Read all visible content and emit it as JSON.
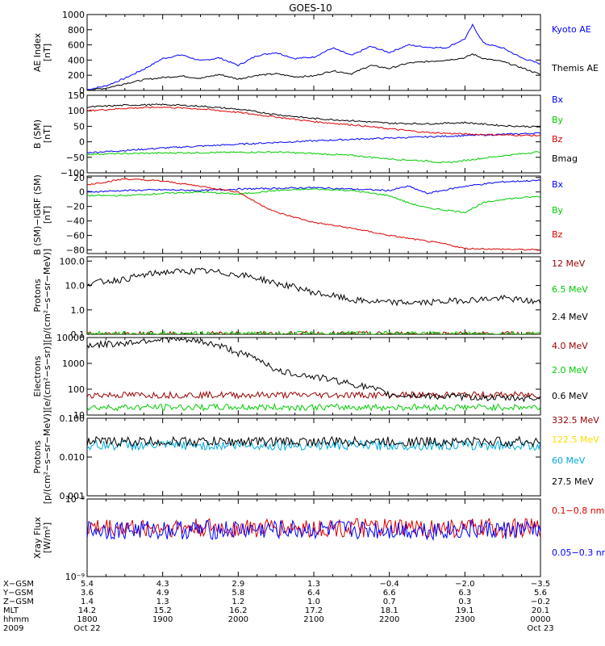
{
  "chart_data": {
    "type": "line",
    "title": "GOES-10",
    "x_range_hours": [
      18,
      24
    ],
    "panels": [
      {
        "id": "ae",
        "ylabel": [
          "AE Index",
          "[nT]"
        ],
        "scale": "linear",
        "ylim": [
          0,
          1000
        ],
        "ticks": [
          "0",
          "200",
          "400",
          "600",
          "800",
          "1000"
        ],
        "tick_values": [
          0,
          200,
          400,
          600,
          800,
          1000
        ],
        "series": [
          {
            "name": "Kyoto AE",
            "color": "#0000ff",
            "x": [
              18.0,
              18.25,
              18.5,
              18.75,
              19.0,
              19.25,
              19.5,
              19.75,
              20.0,
              20.25,
              20.5,
              20.75,
              21.0,
              21.25,
              21.5,
              21.75,
              22.0,
              22.25,
              22.5,
              22.75,
              23.0,
              23.1,
              23.25,
              23.5,
              23.75,
              24.0
            ],
            "values": [
              10,
              60,
              160,
              280,
              420,
              470,
              390,
              430,
              330,
              460,
              500,
              420,
              440,
              560,
              460,
              580,
              500,
              600,
              570,
              560,
              680,
              860,
              620,
              560,
              430,
              350
            ]
          },
          {
            "name": "Themis AE",
            "color": "#000000",
            "x": [
              18.0,
              18.25,
              18.5,
              18.75,
              19.0,
              19.25,
              19.5,
              19.75,
              20.0,
              20.25,
              20.5,
              20.75,
              21.0,
              21.25,
              21.5,
              21.75,
              22.0,
              22.25,
              22.5,
              22.75,
              23.0,
              23.1,
              23.25,
              23.5,
              23.75,
              24.0
            ],
            "values": [
              5,
              30,
              90,
              140,
              170,
              190,
              160,
              210,
              150,
              200,
              220,
              180,
              190,
              260,
              220,
              330,
              290,
              360,
              380,
              400,
              430,
              480,
              420,
              380,
              300,
              210
            ]
          }
        ]
      },
      {
        "id": "bfield",
        "ylabel": [
          "B (SM)",
          "[nT]"
        ],
        "scale": "linear",
        "ylim": [
          -100,
          150
        ],
        "ticks": [
          "−100",
          "−50",
          "0",
          "50",
          "100",
          "150"
        ],
        "tick_values": [
          -100,
          -50,
          0,
          50,
          100,
          150
        ],
        "series": [
          {
            "name": "Bx",
            "color": "#0000ff",
            "x": [
              18.0,
              18.5,
              19.0,
              19.5,
              20.0,
              20.5,
              21.0,
              21.5,
              22.0,
              22.5,
              23.0,
              23.5,
              24.0
            ],
            "values": [
              -35,
              -28,
              -20,
              -14,
              -8,
              -2,
              3,
              8,
              12,
              16,
              20,
              24,
              28
            ]
          },
          {
            "name": "By",
            "color": "#00cc00",
            "x": [
              18.0,
              18.5,
              19.0,
              19.5,
              20.0,
              20.5,
              21.0,
              21.5,
              22.0,
              22.5,
              22.75,
              23.0,
              23.5,
              24.0
            ],
            "values": [
              -40,
              -38,
              -36,
              -35,
              -34,
              -33,
              -38,
              -44,
              -55,
              -62,
              -68,
              -60,
              -45,
              -32
            ]
          },
          {
            "name": "Bz",
            "color": "#dd0000",
            "x": [
              18.0,
              18.5,
              19.0,
              19.5,
              20.0,
              20.5,
              21.0,
              21.5,
              22.0,
              22.5,
              23.0,
              23.5,
              24.0
            ],
            "values": [
              100,
              108,
              112,
              106,
              95,
              80,
              65,
              55,
              42,
              30,
              25,
              22,
              20
            ]
          },
          {
            "name": "Bmag",
            "color": "#000000",
            "x": [
              18.0,
              18.5,
              19.0,
              19.5,
              20.0,
              20.5,
              21.0,
              21.5,
              22.0,
              22.5,
              23.0,
              23.5,
              24.0
            ],
            "values": [
              112,
              118,
              120,
              115,
              105,
              88,
              75,
              68,
              60,
              58,
              62,
              52,
              48
            ]
          }
        ]
      },
      {
        "id": "residual",
        "ylabel": [
          "B (SM)−IGRF (SM)",
          "[nT]"
        ],
        "scale": "linear",
        "ylim": [
          -85,
          22
        ],
        "ticks": [
          "−80",
          "−60",
          "−40",
          "−20",
          "0",
          "20"
        ],
        "tick_values": [
          -80,
          -60,
          -40,
          -20,
          0,
          20
        ],
        "series": [
          {
            "name": "Bx",
            "color": "#0000ff",
            "x": [
              18.0,
              18.5,
              19.0,
              19.5,
              20.0,
              20.5,
              21.0,
              21.5,
              22.0,
              22.25,
              22.5,
              22.75,
              23.0,
              23.5,
              24.0
            ],
            "values": [
              0,
              2,
              3,
              2,
              4,
              5,
              6,
              4,
              2,
              8,
              -2,
              3,
              8,
              14,
              16
            ]
          },
          {
            "name": "By",
            "color": "#00cc00",
            "x": [
              18.0,
              18.5,
              19.0,
              19.5,
              20.0,
              20.5,
              21.0,
              21.5,
              22.0,
              22.25,
              22.5,
              22.75,
              23.0,
              23.25,
              23.5,
              24.0
            ],
            "values": [
              -5,
              -5,
              -2,
              0,
              -3,
              2,
              4,
              2,
              -5,
              -15,
              -22,
              -25,
              -28,
              -15,
              -10,
              -6
            ]
          },
          {
            "name": "Bz",
            "color": "#dd0000",
            "x": [
              18.0,
              18.5,
              19.0,
              19.5,
              20.0,
              20.25,
              20.5,
              20.75,
              21.0,
              21.5,
              22.0,
              22.5,
              22.75,
              23.0,
              23.5,
              24.0
            ],
            "values": [
              10,
              18,
              15,
              8,
              0,
              -15,
              -28,
              -35,
              -42,
              -50,
              -60,
              -68,
              -72,
              -78,
              -79,
              -80
            ]
          }
        ]
      },
      {
        "id": "protons_low",
        "ylabel": [
          "Protons",
          "[p/(cm²−s−sr−MeV)]"
        ],
        "scale": "log",
        "ylim": [
          0.1,
          150
        ],
        "ticks": [
          "0.1",
          "1.0",
          "10.0",
          "100.0"
        ],
        "tick_values": [
          0.1,
          1,
          10,
          100
        ],
        "series": [
          {
            "name": "12 MeV",
            "color": "#990000",
            "x": [
              18.0,
              24.0
            ],
            "values": [
              0.1,
              0.1
            ],
            "noise": 0
          },
          {
            "name": "6.5 MeV",
            "color": "#00cc00",
            "x": [
              18.0,
              24.0
            ],
            "values": [
              0.1,
              0.1
            ],
            "noise": 0
          },
          {
            "name": "2.4 MeV",
            "color": "#000000",
            "x": [
              18.0,
              18.5,
              19.0,
              19.5,
              20.0,
              20.5,
              21.0,
              21.5,
              22.0,
              22.5,
              23.0,
              23.5,
              24.0
            ],
            "values": [
              12,
              18,
              35,
              40,
              28,
              12,
              5,
              2.5,
              2,
              2,
              2.5,
              3,
              2
            ]
          }
        ]
      },
      {
        "id": "electrons",
        "ylabel": [
          "Electrons",
          "[e/(cm²−s−sr)]"
        ],
        "scale": "log",
        "ylim": [
          10,
          10000
        ],
        "ticks": [
          "10",
          "100",
          "1000",
          "10000"
        ],
        "tick_values": [
          10,
          100,
          1000,
          10000
        ],
        "series": [
          {
            "name": "4.0 MeV",
            "color": "#990000",
            "x": [
              18.0,
              19.0,
              20.0,
              21.0,
              22.0,
              23.0,
              24.0
            ],
            "values": [
              60,
              60,
              60,
              60,
              60,
              60,
              60
            ]
          },
          {
            "name": "2.0 MeV",
            "color": "#00cc00",
            "x": [
              18.0,
              19.0,
              20.0,
              21.0,
              22.0,
              23.0,
              24.0
            ],
            "values": [
              20,
              20,
              20,
              20,
              20,
              20,
              20
            ]
          },
          {
            "name": "0.6 MeV",
            "color": "#000000",
            "x": [
              18.0,
              18.5,
              19.0,
              19.5,
              20.0,
              20.5,
              21.0,
              21.5,
              22.0,
              22.5,
              23.0,
              23.5,
              24.0
            ],
            "values": [
              5000,
              6000,
              9000,
              7000,
              2500,
              500,
              300,
              160,
              60,
              55,
              50,
              45,
              45
            ]
          }
        ]
      },
      {
        "id": "protons_high",
        "ylabel": [
          "Protons",
          "[p/(cm²−s−sr−MeV)]"
        ],
        "scale": "log",
        "ylim": [
          0.001,
          0.1
        ],
        "ticks": [
          "0.001",
          "0.010",
          "0.100"
        ],
        "tick_values": [
          0.001,
          0.01,
          0.1
        ],
        "series": [
          {
            "name": "332.5 MeV",
            "color": "#990000",
            "x": [],
            "values": []
          },
          {
            "name": "122.5 MeV",
            "color": "#ffdd00",
            "x": [],
            "values": []
          },
          {
            "name": "60 MeV",
            "color": "#00aadd",
            "x": [
              18.0,
              24.0
            ],
            "values": [
              0.02,
              0.02
            ]
          },
          {
            "name": "27.5 MeV",
            "color": "#000000",
            "x": [
              18.0,
              24.0
            ],
            "values": [
              0.025,
              0.025
            ]
          }
        ]
      },
      {
        "id": "xray",
        "ylabel": [
          "Xray Flux",
          "[W/m²]"
        ],
        "scale": "log",
        "ylim": [
          1e-09,
          1e-08
        ],
        "ticks": [
          "10⁻⁹",
          "10⁻⁸"
        ],
        "tick_values": [
          1e-09,
          1e-08
        ],
        "series": [
          {
            "name": "0.1−0.8 nm",
            "color": "#dd0000",
            "x": [
              18.0,
              24.0
            ],
            "values": [
              4.2e-09,
              4.2e-09
            ]
          },
          {
            "name": "0.05−0.3 nm",
            "color": "#0000ff",
            "x": [
              18.0,
              24.0
            ],
            "values": [
              4e-09,
              4e-09
            ]
          }
        ]
      }
    ],
    "ephemeris": {
      "labels": [
        "X−GSM",
        "Y−GSM",
        "Z−GSM",
        "MLT",
        "hhmm",
        "2009"
      ],
      "columns": [
        {
          "x": 18.0,
          "values": [
            "5.4",
            "3.6",
            "1.4",
            "14.2",
            "1800",
            "Oct 22"
          ]
        },
        {
          "x": 19.0,
          "values": [
            "4.3",
            "4.9",
            "1.3",
            "15.2",
            "1900",
            ""
          ]
        },
        {
          "x": 20.0,
          "values": [
            "2.9",
            "5.8",
            "1.2",
            "16.2",
            "2000",
            ""
          ]
        },
        {
          "x": 21.0,
          "values": [
            "1.3",
            "6.4",
            "1.0",
            "17.2",
            "2100",
            ""
          ]
        },
        {
          "x": 22.0,
          "values": [
            "−0.4",
            "6.6",
            "0.7",
            "18.1",
            "2200",
            ""
          ]
        },
        {
          "x": 23.0,
          "values": [
            "−2.0",
            "6.3",
            "0.3",
            "19.1",
            "2300",
            ""
          ]
        },
        {
          "x": 24.0,
          "values": [
            "−3.5",
            "5.6",
            "−0.2",
            "20.1",
            "0000",
            "Oct 23"
          ]
        }
      ]
    }
  }
}
